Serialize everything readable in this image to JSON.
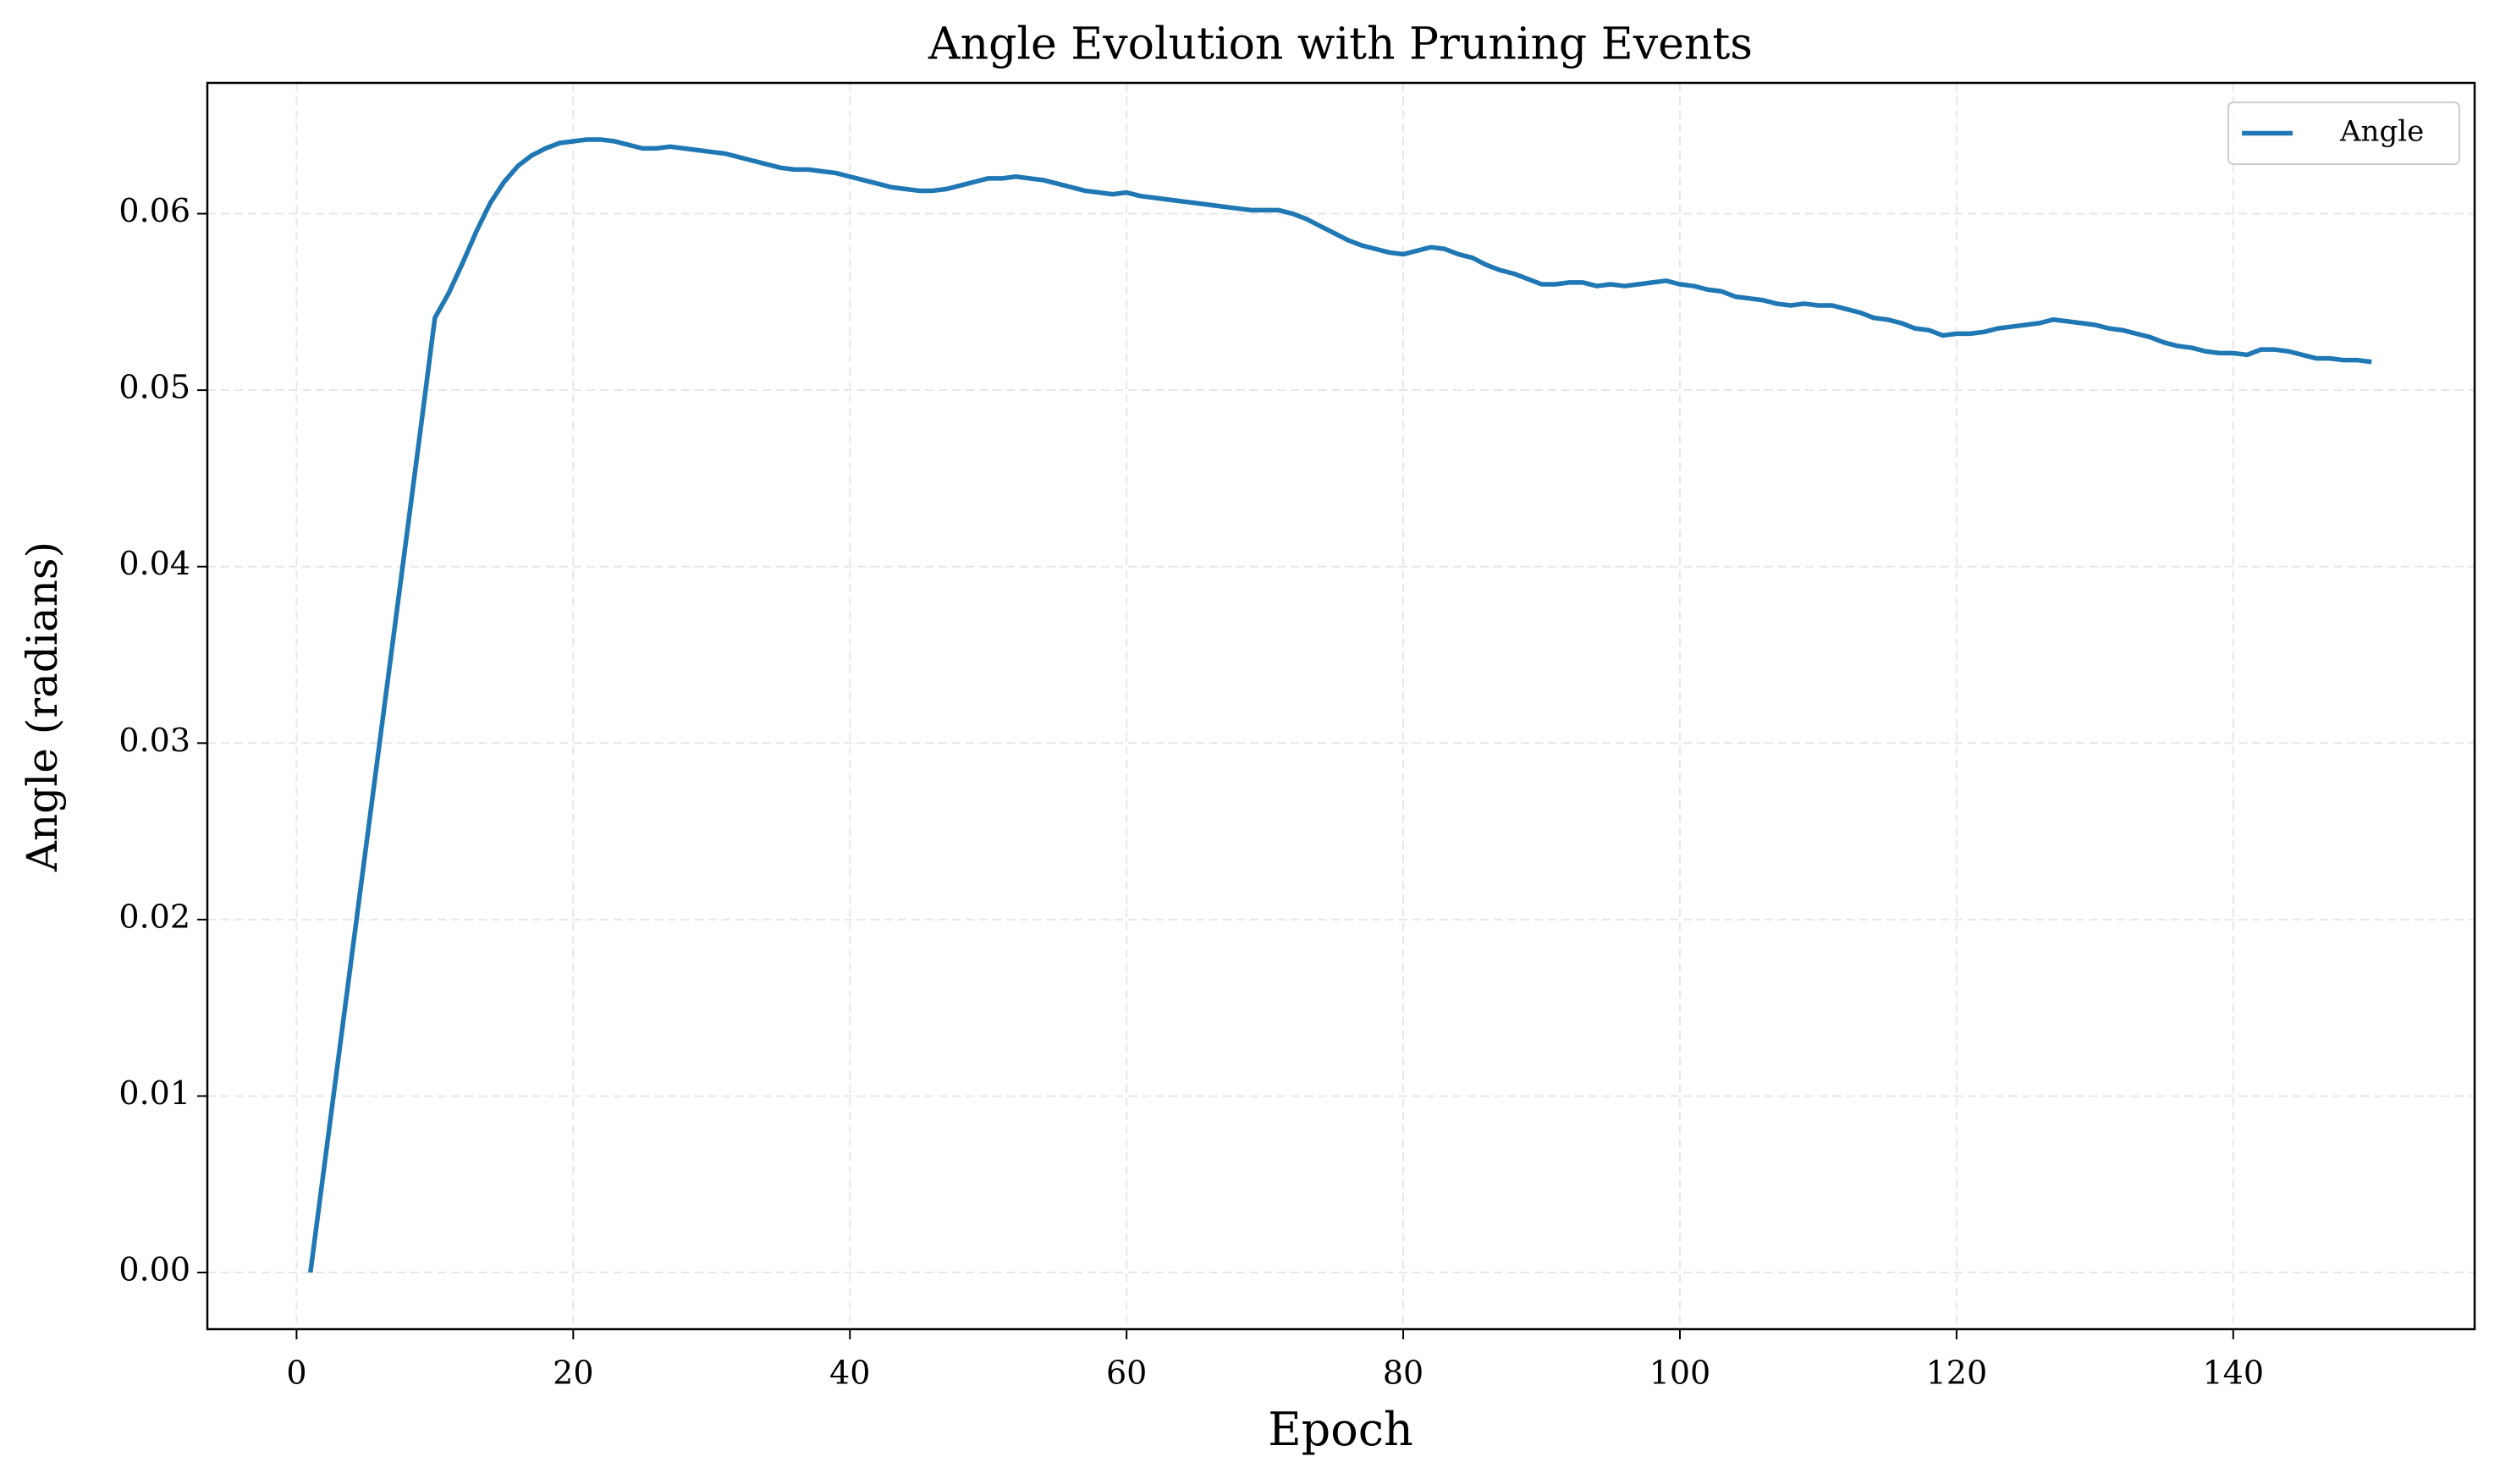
{
  "chart_data": {
    "type": "line",
    "title": "Angle Evolution with Pruning Events",
    "x_label": "Epoch",
    "y_label": "Angle (radians)",
    "x": [
      1,
      2,
      3,
      4,
      5,
      6,
      7,
      8,
      9,
      10,
      11,
      12,
      13,
      14,
      15,
      16,
      17,
      18,
      19,
      20,
      21,
      22,
      23,
      24,
      25,
      26,
      27,
      28,
      29,
      30,
      31,
      32,
      33,
      34,
      35,
      36,
      37,
      38,
      39,
      40,
      41,
      42,
      43,
      44,
      45,
      46,
      47,
      48,
      49,
      50,
      51,
      52,
      53,
      54,
      55,
      56,
      57,
      58,
      59,
      60,
      61,
      62,
      63,
      64,
      65,
      66,
      67,
      68,
      69,
      70,
      71,
      72,
      73,
      74,
      75,
      76,
      77,
      78,
      79,
      80,
      81,
      82,
      83,
      84,
      85,
      86,
      87,
      88,
      89,
      90,
      91,
      92,
      93,
      94,
      95,
      96,
      97,
      98,
      99,
      100,
      101,
      102,
      103,
      104,
      105,
      106,
      107,
      108,
      109,
      110,
      111,
      112,
      113,
      114,
      115,
      116,
      117,
      118,
      119,
      120,
      121,
      122,
      123,
      124,
      125,
      126,
      127,
      128,
      129,
      130,
      131,
      132,
      133,
      134,
      135,
      136,
      137,
      138,
      139,
      140,
      141,
      142,
      143,
      144,
      145,
      146,
      147,
      148,
      149,
      150
    ],
    "series": [
      {
        "name": "Angle",
        "color": "#1f77b4",
        "values": [
          0,
          0.006,
          0.012,
          0.018,
          0.024,
          0.03,
          0.036,
          0.042,
          0.048,
          0.0541,
          0.0555,
          0.0572,
          0.059,
          0.0606,
          0.0618,
          0.0627,
          0.0633,
          0.0637,
          0.064,
          0.0641,
          0.0642,
          0.0642,
          0.0641,
          0.0639,
          0.0637,
          0.0637,
          0.0638,
          0.0637,
          0.0636,
          0.0635,
          0.0634,
          0.0632,
          0.063,
          0.0628,
          0.0626,
          0.0625,
          0.0625,
          0.0624,
          0.0623,
          0.0621,
          0.0619,
          0.0617,
          0.0615,
          0.0614,
          0.0613,
          0.0613,
          0.0614,
          0.0616,
          0.0618,
          0.062,
          0.062,
          0.0621,
          0.062,
          0.0619,
          0.0617,
          0.0615,
          0.0613,
          0.0612,
          0.0611,
          0.0612,
          0.061,
          0.0609,
          0.0608,
          0.0607,
          0.0606,
          0.0605,
          0.0604,
          0.0603,
          0.0602,
          0.0602,
          0.0602,
          0.06,
          0.0597,
          0.0593,
          0.0589,
          0.0585,
          0.0582,
          0.058,
          0.0578,
          0.0577,
          0.0579,
          0.0581,
          0.058,
          0.0577,
          0.0575,
          0.0571,
          0.0568,
          0.0566,
          0.0563,
          0.056,
          0.056,
          0.0561,
          0.0561,
          0.0559,
          0.056,
          0.0559,
          0.056,
          0.0561,
          0.0562,
          0.056,
          0.0559,
          0.0557,
          0.0556,
          0.0553,
          0.0552,
          0.0551,
          0.0549,
          0.0548,
          0.0549,
          0.0548,
          0.0548,
          0.0546,
          0.0544,
          0.0541,
          0.054,
          0.0538,
          0.0535,
          0.0534,
          0.0531,
          0.0532,
          0.0532,
          0.0533,
          0.0535,
          0.0536,
          0.0537,
          0.0538,
          0.054,
          0.0539,
          0.0538,
          0.0537,
          0.0535,
          0.0534,
          0.0532,
          0.053,
          0.0527,
          0.0525,
          0.0524,
          0.0522,
          0.0521,
          0.0521,
          0.052,
          0.0523,
          0.0523,
          0.0522,
          0.052,
          0.0518,
          0.0518,
          0.0517,
          0.0517,
          0.0516
        ]
      }
    ],
    "xlim": [
      -6.45,
      157.45
    ],
    "ylim": [
      -0.00321,
      0.06741
    ],
    "xticks": [
      0,
      20,
      40,
      60,
      80,
      100,
      120,
      140
    ],
    "yticks": [
      {
        "value": 0,
        "label": "0.00"
      },
      0.01,
      0.02,
      0.03,
      0.04,
      0.05,
      0.06
    ],
    "grid": true,
    "legend_position": "upper-right"
  }
}
